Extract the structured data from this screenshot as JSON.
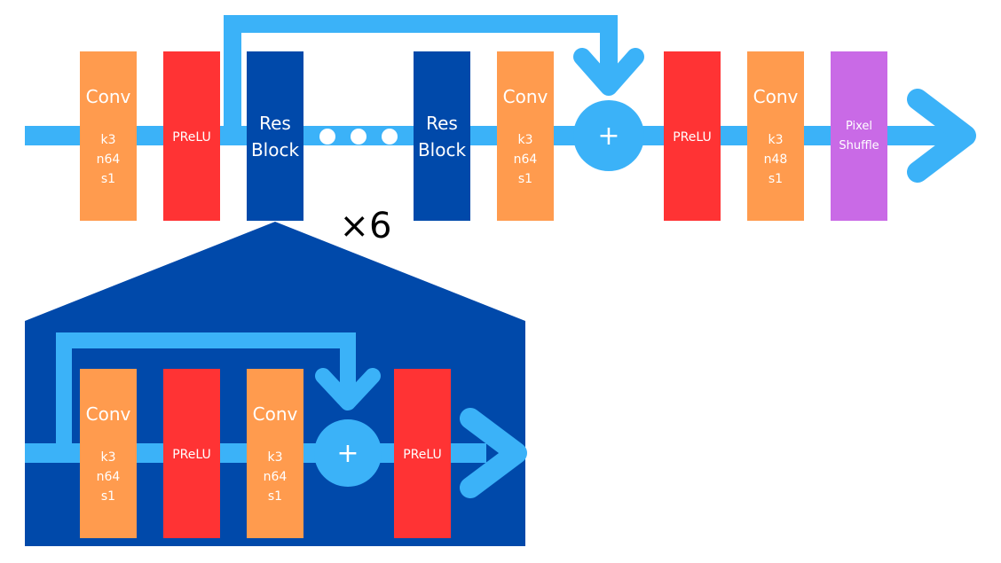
{
  "top_row": {
    "conv1": {
      "title": "Conv",
      "k": "k3",
      "n": "n64",
      "s": "s1"
    },
    "prelu1": {
      "label": "PReLU"
    },
    "res_block_first": {
      "line1": "Res",
      "line2": "Block"
    },
    "res_block_last": {
      "line1": "Res",
      "line2": "Block"
    },
    "conv2": {
      "title": "Conv",
      "k": "k3",
      "n": "n64",
      "s": "s1"
    },
    "add": {
      "symbol": "+"
    },
    "prelu2": {
      "label": "PReLU"
    },
    "conv3": {
      "title": "Conv",
      "k": "k3",
      "n": "n48",
      "s": "s1"
    },
    "pixel_shuffle": {
      "line1": "Pixel",
      "line2": "Shuffle"
    },
    "repeat_label": "×6"
  },
  "res_block_detail": {
    "conv1": {
      "title": "Conv",
      "k": "k3",
      "n": "n64",
      "s": "s1"
    },
    "prelu1": {
      "label": "PReLU"
    },
    "conv2": {
      "title": "Conv",
      "k": "k3",
      "n": "n64",
      "s": "s1"
    },
    "add": {
      "symbol": "+"
    },
    "prelu2": {
      "label": "PReLU"
    }
  },
  "colors": {
    "flow": "#3bb2f8",
    "conv": "#ff9b4e",
    "prelu": "#ff3334",
    "res_block": "#0049aa",
    "pixel_shuffle": "#c96ae6",
    "detail_bg": "#0049aa"
  }
}
